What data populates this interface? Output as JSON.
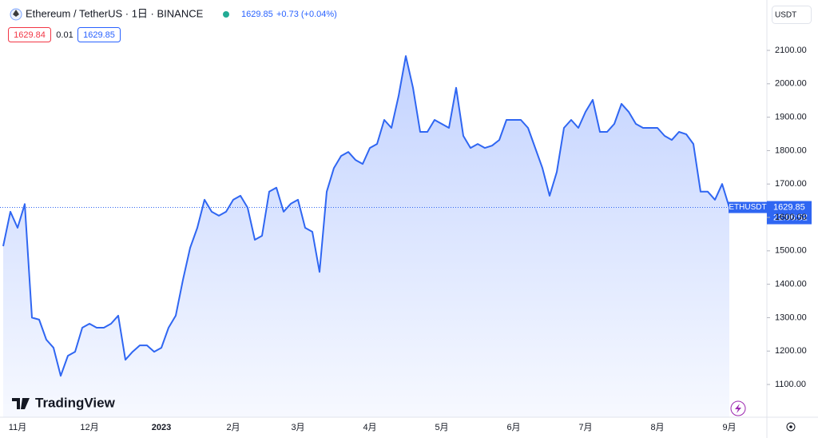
{
  "header": {
    "symbol": "Ethereum / TetherUS · 1日 · BINANCE",
    "price": "1629.85",
    "change": "+0.73 (+0.04%)",
    "bid": "1629.84",
    "spread": "0.01",
    "ask": "1629.85",
    "currency": "USDT",
    "tag_symbol": "ETHUSDT",
    "countdown": "22:06:52",
    "brand": "TradingView"
  },
  "chart_data": {
    "type": "area",
    "categories": [
      null,
      null,
      "11月",
      null,
      null,
      null,
      null,
      null,
      null,
      null,
      null,
      null,
      "12月",
      null,
      null,
      null,
      null,
      null,
      null,
      null,
      null,
      null,
      "2023",
      null,
      null,
      null,
      null,
      null,
      null,
      null,
      null,
      null,
      "2月",
      null,
      null,
      null,
      null,
      null,
      null,
      null,
      null,
      "3月",
      null,
      null,
      null,
      null,
      null,
      null,
      null,
      null,
      null,
      "4月",
      null,
      null,
      null,
      null,
      null,
      null,
      null,
      null,
      null,
      "5月",
      null,
      null,
      null,
      null,
      null,
      null,
      null,
      null,
      null,
      "6月",
      null,
      null,
      null,
      null,
      null,
      null,
      null,
      null,
      null,
      "7月",
      null,
      null,
      null,
      null,
      null,
      null,
      null,
      null,
      null,
      "8月",
      null,
      null,
      null,
      null,
      null,
      null,
      null,
      null,
      null,
      "9月"
    ],
    "series": [
      {
        "name": "ETHUSDT",
        "color": "#2f66f2",
        "values": [
          1514,
          1617,
          1569,
          1640,
          1300,
          1294,
          1234,
          1210,
          1126,
          1186,
          1198,
          1270,
          1282,
          1270,
          1270,
          1282,
          1306,
          1174,
          1198,
          1217,
          1217,
          1198,
          1210,
          1270,
          1306,
          1413,
          1509,
          1569,
          1653,
          1617,
          1605,
          1617,
          1653,
          1665,
          1629,
          1533,
          1545,
          1677,
          1689,
          1617,
          1641,
          1653,
          1569,
          1557,
          1437,
          1677,
          1748,
          1784,
          1796,
          1772,
          1760,
          1808,
          1820,
          1892,
          1868,
          1964,
          2083,
          1988,
          1856,
          1856,
          1892,
          1880,
          1868,
          1988,
          1844,
          1808,
          1820,
          1808,
          1815,
          1832,
          1892,
          1892,
          1892,
          1868,
          1808,
          1748,
          1665,
          1736,
          1868,
          1892,
          1868,
          1916,
          1952,
          1856,
          1856,
          1880,
          1940,
          1916,
          1880,
          1868,
          1868,
          1868,
          1844,
          1832,
          1856,
          1849,
          1820,
          1677,
          1677,
          1653,
          1700,
          1629.85
        ]
      }
    ],
    "ylim": [
      1002,
      2179
    ],
    "yticks": [
      {
        "value": 1100,
        "label": "1100.00"
      },
      {
        "value": 1200,
        "label": "1200.00"
      },
      {
        "value": 1300,
        "label": "1300.00"
      },
      {
        "value": 1400,
        "label": "1400.00"
      },
      {
        "value": 1500,
        "label": "1500.00"
      },
      {
        "value": 1600,
        "label": "1600.00"
      },
      {
        "value": 1700,
        "label": "1700.00"
      },
      {
        "value": 1800,
        "label": "1800.00"
      },
      {
        "value": 1900,
        "label": "1900.00"
      },
      {
        "value": 2000,
        "label": "2000.00"
      },
      {
        "value": 2100,
        "label": "2100.00"
      }
    ],
    "grid": false
  }
}
